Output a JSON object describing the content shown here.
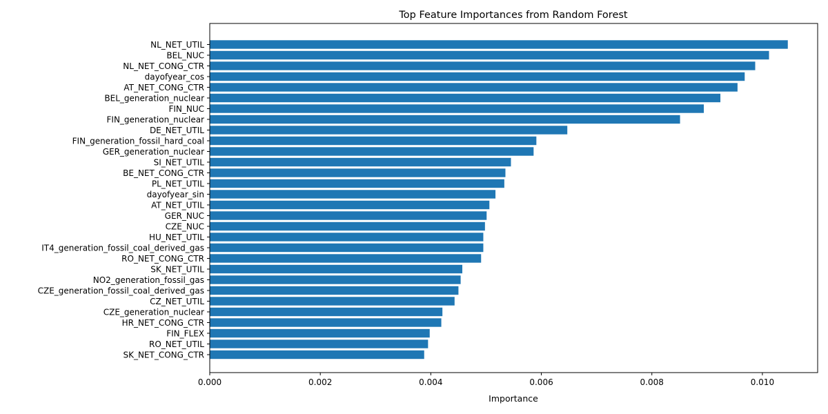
{
  "chart_data": {
    "type": "bar",
    "orientation": "horizontal",
    "title": "Top Feature Importances from Random Forest",
    "xlabel": "Importance",
    "ylabel": "",
    "xlim": [
      0,
      0.011
    ],
    "xticks": [
      0.0,
      0.002,
      0.004,
      0.006,
      0.008,
      0.01
    ],
    "xtick_labels": [
      "0.000",
      "0.002",
      "0.004",
      "0.006",
      "0.008",
      "0.010"
    ],
    "bar_color": "#1f77b4",
    "grid": false,
    "categories": [
      "NL_NET_UTIL",
      "BEL_NUC",
      "NL_NET_CONG_CTR",
      "dayofyear_cos",
      "AT_NET_CONG_CTR",
      "BEL_generation_nuclear",
      "FIN_NUC",
      "FIN_generation_nuclear",
      "DE_NET_UTIL",
      "FIN_generation_fossil_hard_coal",
      "GER_generation_nuclear",
      "SI_NET_UTIL",
      "BE_NET_CONG_CTR",
      "PL_NET_UTIL",
      "dayofyear_sin",
      "AT_NET_UTIL",
      "GER_NUC",
      "CZE_NUC",
      "HU_NET_UTIL",
      "IT4_generation_fossil_coal_derived_gas",
      "RO_NET_CONG_CTR",
      "SK_NET_UTIL",
      "NO2_generation_fossil_gas",
      "CZE_generation_fossil_coal_derived_gas",
      "CZ_NET_UTIL",
      "CZE_generation_nuclear",
      "HR_NET_CONG_CTR",
      "FIN_FLEX",
      "RO_NET_UTIL",
      "SK_NET_CONG_CTR"
    ],
    "values": [
      0.01046,
      0.01012,
      0.00987,
      0.00968,
      0.00955,
      0.00924,
      0.00894,
      0.00851,
      0.00647,
      0.00591,
      0.00586,
      0.00545,
      0.00535,
      0.00533,
      0.00517,
      0.00506,
      0.00501,
      0.00498,
      0.00495,
      0.00495,
      0.00491,
      0.00457,
      0.00454,
      0.0045,
      0.00443,
      0.00421,
      0.00419,
      0.00398,
      0.00395,
      0.00388
    ]
  }
}
